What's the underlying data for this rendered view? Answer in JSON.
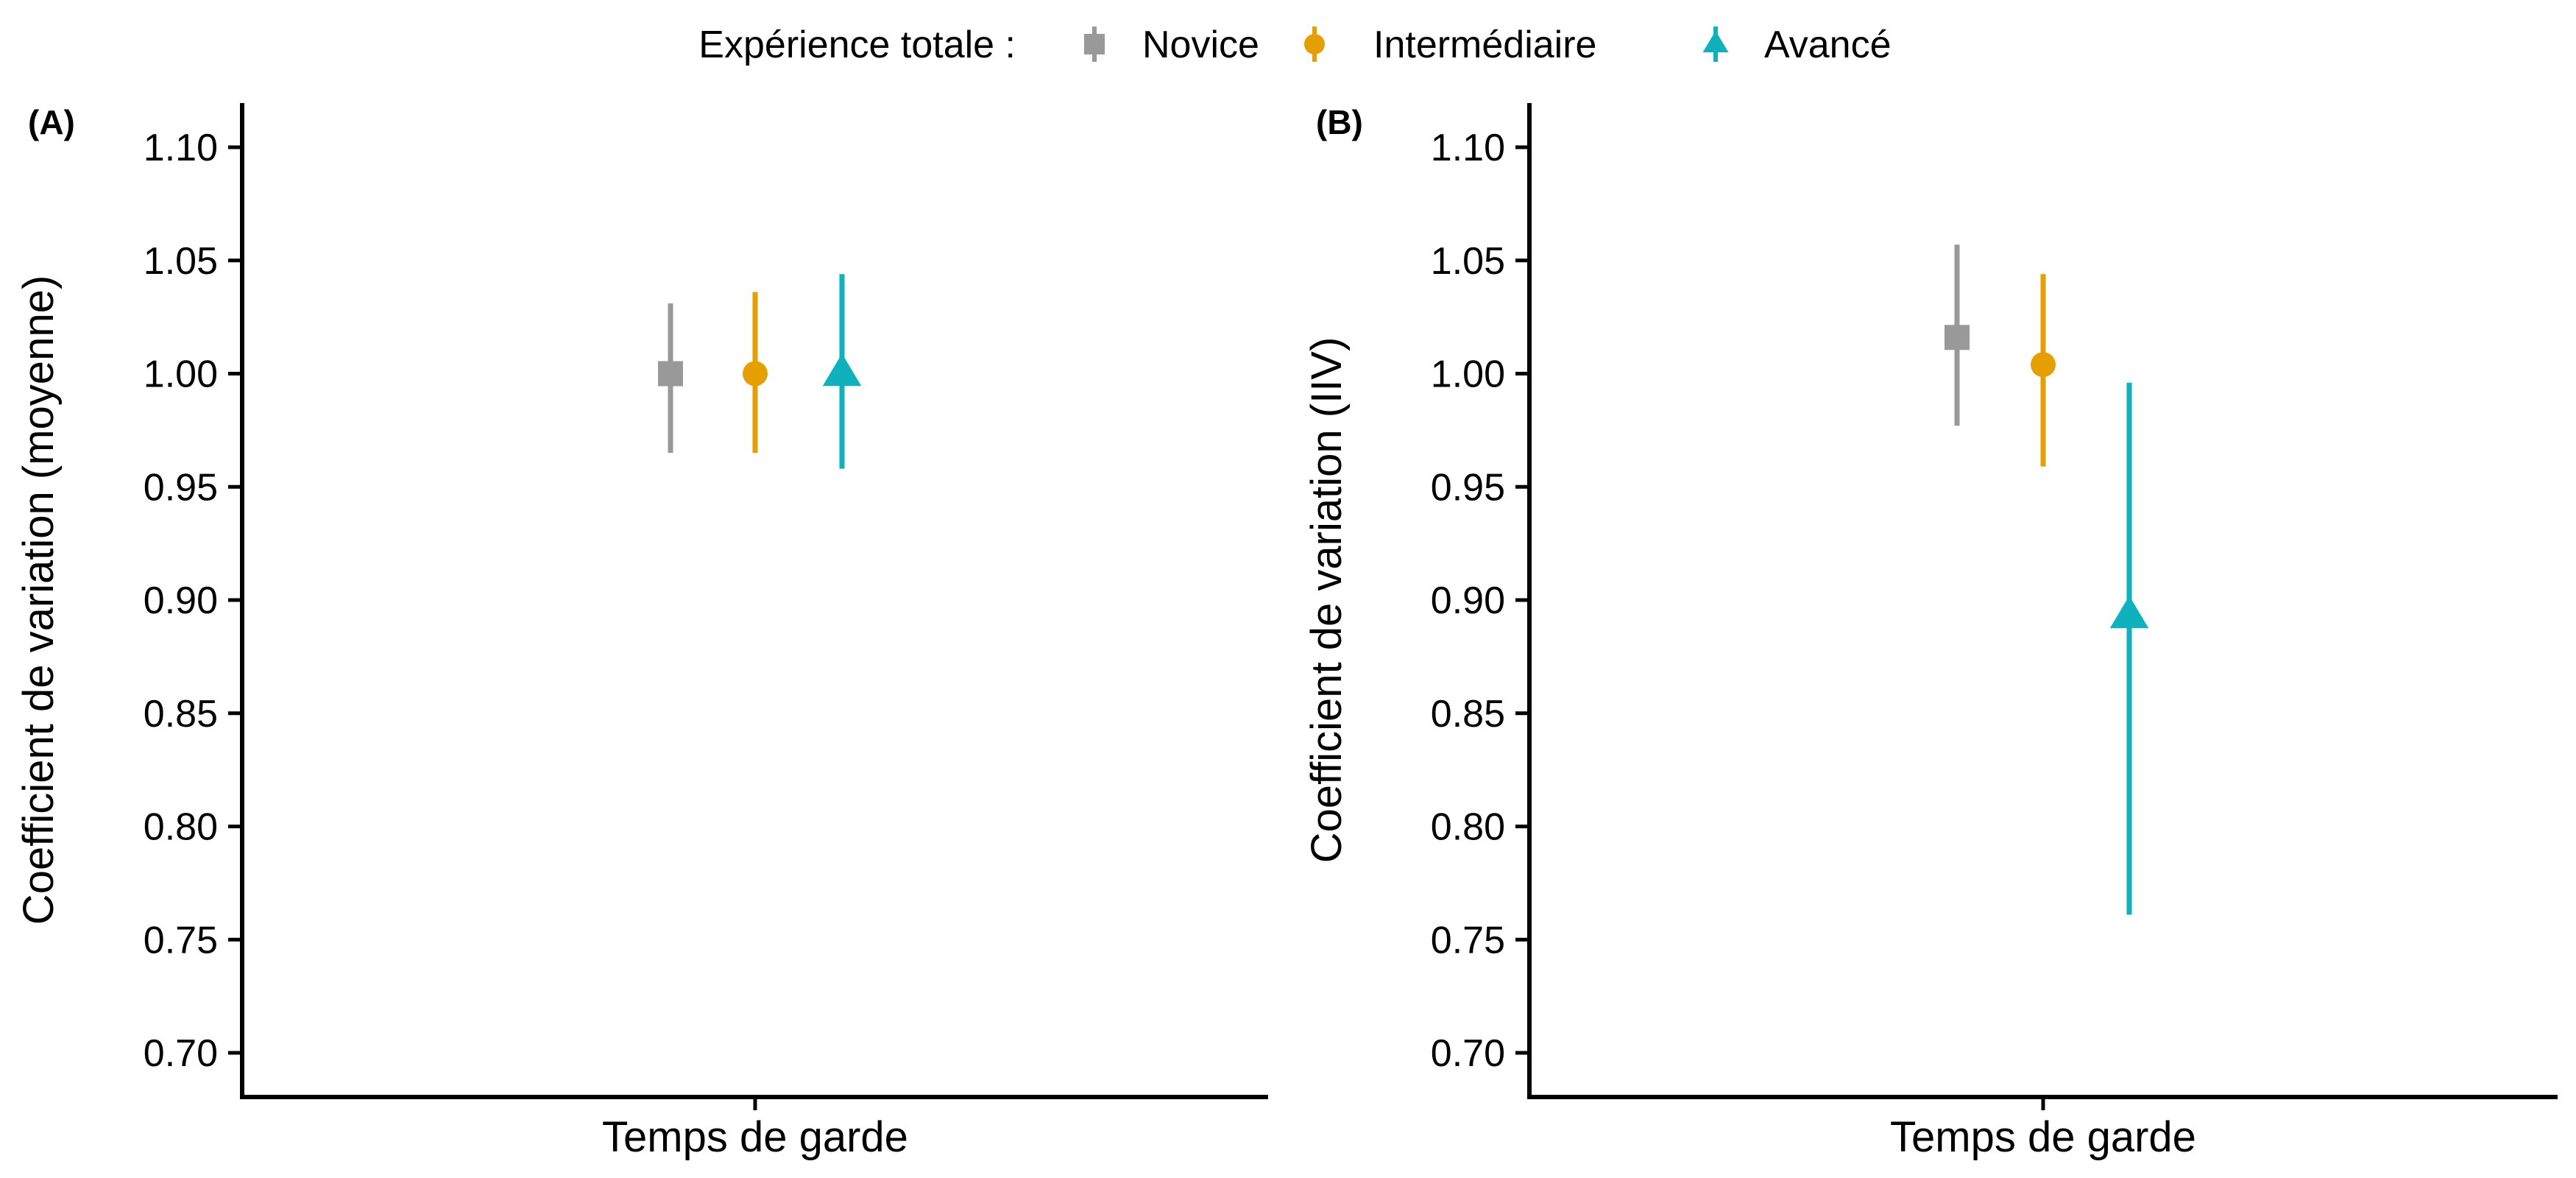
{
  "legend": {
    "title": "Expérience totale :",
    "items": [
      {
        "label": "Novice",
        "shape": "square",
        "color": "#999999"
      },
      {
        "label": "Intermédiaire",
        "shape": "circle",
        "color": "#E69F00"
      },
      {
        "label": "Avancé",
        "shape": "triangle",
        "color": "#0FB1BC"
      }
    ]
  },
  "chart_data": [
    {
      "type": "scatter",
      "panel": "(A)",
      "xlabel": "Temps de garde",
      "ylabel": "Coefficient de variation (moyenne)",
      "ylim": [
        0.68,
        1.12
      ],
      "yticks": [
        "0.70",
        "0.75",
        "0.80",
        "0.85",
        "0.90",
        "0.95",
        "1.00",
        "1.05",
        "1.10"
      ],
      "grid": false,
      "series": [
        {
          "name": "Novice",
          "x": "Temps de garde",
          "y": 1.0,
          "lower": 0.965,
          "upper": 1.031,
          "color": "#999999",
          "shape": "square"
        },
        {
          "name": "Intermédiaire",
          "x": "Temps de garde",
          "y": 1.0,
          "lower": 0.965,
          "upper": 1.036,
          "color": "#E69F00",
          "shape": "circle"
        },
        {
          "name": "Avancé",
          "x": "Temps de garde",
          "y": 1.0,
          "lower": 0.958,
          "upper": 1.044,
          "color": "#0FB1BC",
          "shape": "triangle"
        }
      ]
    },
    {
      "type": "scatter",
      "panel": "(B)",
      "xlabel": "Temps de garde",
      "ylabel": "Coefficient de variation (IIV)",
      "ylim": [
        0.68,
        1.12
      ],
      "yticks": [
        "0.70",
        "0.75",
        "0.80",
        "0.85",
        "0.90",
        "0.95",
        "1.00",
        "1.05",
        "1.10"
      ],
      "grid": false,
      "series": [
        {
          "name": "Novice",
          "x": "Temps de garde",
          "y": 1.016,
          "lower": 0.977,
          "upper": 1.057,
          "color": "#999999",
          "shape": "square"
        },
        {
          "name": "Intermédiaire",
          "x": "Temps de garde",
          "y": 1.004,
          "lower": 0.959,
          "upper": 1.044,
          "color": "#E69F00",
          "shape": "circle"
        },
        {
          "name": "Avancé",
          "x": "Temps de garde",
          "y": 0.893,
          "lower": 0.761,
          "upper": 0.996,
          "color": "#0FB1BC",
          "shape": "triangle"
        }
      ]
    }
  ]
}
